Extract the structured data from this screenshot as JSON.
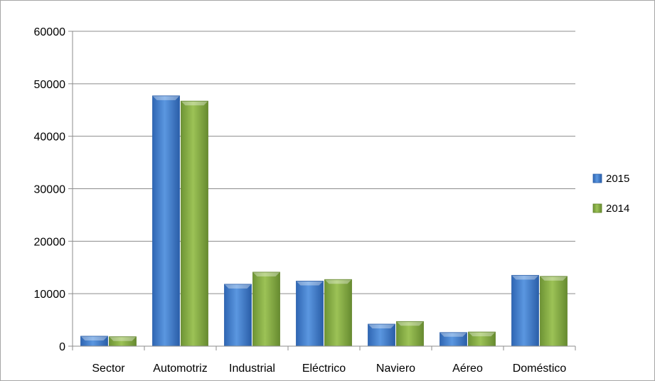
{
  "chart_data": {
    "type": "bar",
    "title": "",
    "xlabel": "",
    "ylabel": "",
    "categories": [
      "Sector",
      "Automotriz",
      "Industrial",
      "Eléctrico",
      "Naviero",
      "Aéreo",
      "Doméstico"
    ],
    "series": [
      {
        "name": "2015",
        "values": [
          1900,
          47700,
          11800,
          12400,
          4200,
          2600,
          13500
        ],
        "color": "#4a86d4"
      },
      {
        "name": "2014",
        "values": [
          1800,
          46700,
          14100,
          12700,
          4700,
          2700,
          13300
        ],
        "color": "#8bb04a"
      }
    ],
    "ylim": [
      0,
      60000
    ],
    "yticks": [
      "0",
      "10000",
      "20000",
      "30000",
      "40000",
      "50000",
      "60000"
    ],
    "grid": true,
    "legend": "right"
  }
}
